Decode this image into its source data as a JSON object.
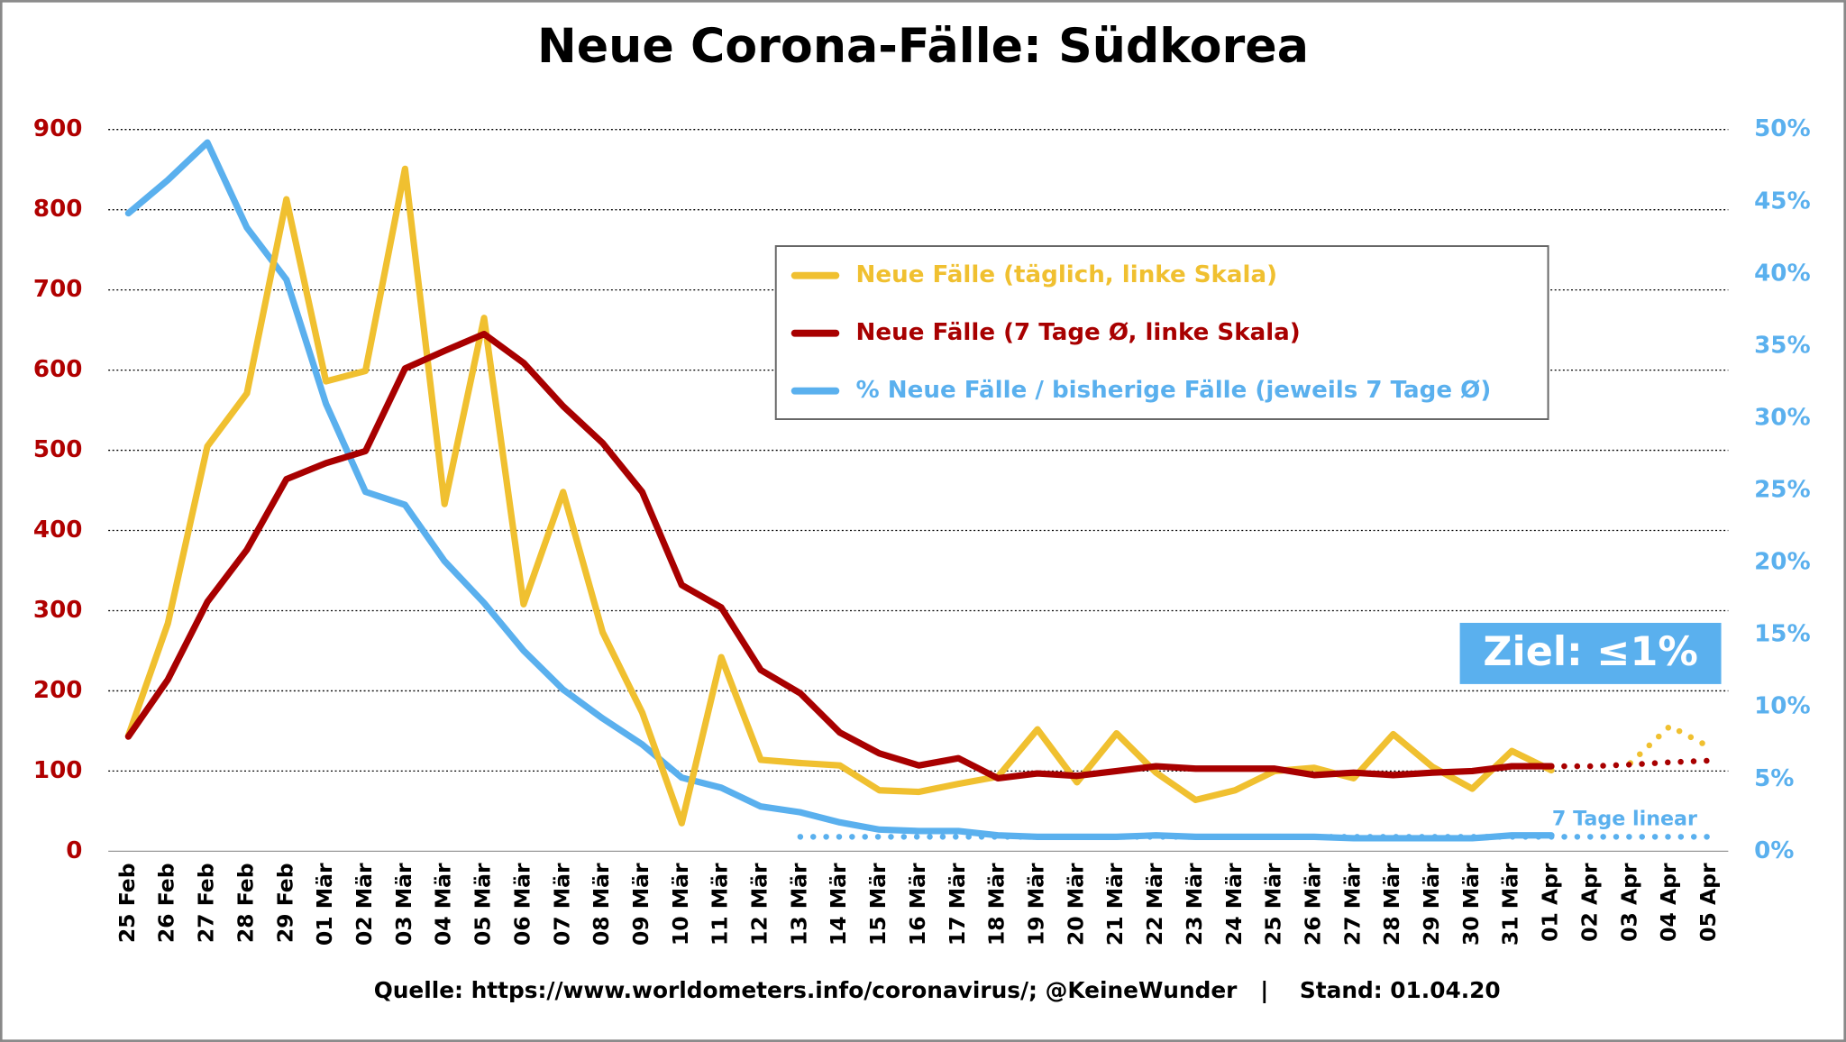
{
  "chart_data": {
    "type": "line",
    "title": "Neue Corona-Fälle: Südkorea",
    "categories": [
      "25 Feb",
      "26 Feb",
      "27 Feb",
      "28 Feb",
      "29 Feb",
      "01 Mär",
      "02 Mär",
      "03 Mär",
      "04 Mär",
      "05 Mär",
      "06 Mär",
      "07 Mär",
      "08 Mär",
      "09 Mär",
      "10 Mär",
      "11 Mär",
      "12 Mär",
      "13 Mär",
      "14 Mär",
      "15 Mär",
      "16 Mär",
      "17 Mär",
      "18 Mär",
      "19 Mär",
      "20 Mär",
      "21 Mär",
      "22 Mär",
      "23 Mär",
      "24 Mär",
      "25 Mär",
      "26 Mär",
      "27 Mär",
      "28 Mär",
      "29 Mär",
      "30 Mär",
      "31 Mär",
      "01 Apr",
      "02 Apr",
      "03 Apr",
      "04 Apr",
      "05 Apr"
    ],
    "series": [
      {
        "name": "Neue Fälle (täglich, linke Skala)",
        "color": "#f0c030",
        "values": [
          144,
          284,
          505,
          571,
          813,
          586,
          599,
          851,
          433,
          665,
          308,
          448,
          273,
          173,
          35,
          242,
          114,
          110,
          107,
          76,
          74,
          84,
          93,
          152,
          86,
          147,
          98,
          64,
          76,
          100,
          104,
          91,
          146,
          105,
          78,
          125,
          101,
          null,
          null,
          null,
          null
        ]
      },
      {
        "name": "Neue Fälle (7 Tage Ø, linke Skala)",
        "color": "#a80000",
        "values": [
          143,
          214,
          311,
          376,
          464,
          484,
          499,
          602,
          624,
          645,
          609,
          555,
          509,
          448,
          332,
          304,
          226,
          197,
          148,
          122,
          107,
          116,
          91,
          97,
          94,
          100,
          106,
          103,
          103,
          103,
          95,
          98,
          95,
          98,
          100,
          106,
          106,
          null,
          null,
          null,
          null
        ]
      },
      {
        "name": "% Neue Fälle / bisherige Fälle (jeweils 7 Tage Ø)",
        "color": "#5ab0ee",
        "axis": "y2",
        "values": [
          44.2,
          46.5,
          49.1,
          43.2,
          39.6,
          31.0,
          24.9,
          24.0,
          20.1,
          17.2,
          13.9,
          11.2,
          9.2,
          7.4,
          5.1,
          4.4,
          3.1,
          2.7,
          2.0,
          1.5,
          1.4,
          1.4,
          1.1,
          1.0,
          1.0,
          1.0,
          1.1,
          1.0,
          1.0,
          1.0,
          1.0,
          0.9,
          0.9,
          0.9,
          0.9,
          1.1,
          1.1,
          null,
          null,
          null,
          null
        ]
      },
      {
        "color": "#f0c030",
        "line_style": "dotted",
        "values": [
          null,
          null,
          null,
          null,
          null,
          null,
          null,
          null,
          null,
          null,
          null,
          null,
          null,
          null,
          null,
          null,
          null,
          null,
          null,
          null,
          null,
          null,
          null,
          null,
          null,
          null,
          null,
          null,
          null,
          null,
          null,
          null,
          null,
          null,
          null,
          null,
          null,
          null,
          110,
          156,
          130
        ]
      },
      {
        "color": "#a80000",
        "line_style": "dotted",
        "values": [
          null,
          null,
          null,
          null,
          null,
          null,
          null,
          null,
          null,
          null,
          null,
          null,
          null,
          null,
          null,
          null,
          null,
          null,
          null,
          null,
          null,
          null,
          null,
          null,
          null,
          null,
          null,
          null,
          null,
          null,
          null,
          null,
          null,
          null,
          null,
          null,
          106,
          106,
          108,
          111,
          113
        ]
      },
      {
        "color": "#5ab0ee",
        "line_style": "dotted",
        "axis": "y2",
        "values": [
          null,
          null,
          null,
          null,
          null,
          null,
          null,
          null,
          null,
          null,
          null,
          null,
          null,
          null,
          null,
          null,
          null,
          1.0,
          1.0,
          1.0,
          1.0,
          1.0,
          1.0,
          1.0,
          1.0,
          1.0,
          1.0,
          1.0,
          1.0,
          1.0,
          1.0,
          1.0,
          1.0,
          1.0,
          1.0,
          1.0,
          1.0,
          1.0,
          1.0,
          1.0,
          1.0
        ]
      }
    ],
    "ylim": [
      0,
      900
    ],
    "yticks": [
      0,
      100,
      200,
      300,
      400,
      500,
      600,
      700,
      800,
      900
    ],
    "y2lim": [
      0,
      50
    ],
    "y2ticks": [
      {
        "value": 0,
        "label": "0%"
      },
      {
        "value": 5,
        "label": "5%"
      },
      {
        "value": 10,
        "label": "10%"
      },
      {
        "value": 15,
        "label": "15%"
      },
      {
        "value": 20,
        "label": "20%"
      },
      {
        "value": 25,
        "label": "25%"
      },
      {
        "value": 30,
        "label": "30%"
      },
      {
        "value": 35,
        "label": "35%"
      },
      {
        "value": 40,
        "label": "40%"
      },
      {
        "value": 45,
        "label": "45%"
      },
      {
        "value": 50,
        "label": "50%"
      }
    ],
    "grid": true,
    "legend": "top-right",
    "annotations": [
      "7 Tage linear",
      "Ziel: ≤1%"
    ],
    "footer": "Quelle: https://www.worldometers.info/coronavirus/; @KeineWunder   |    Stand: 01.04.20"
  }
}
